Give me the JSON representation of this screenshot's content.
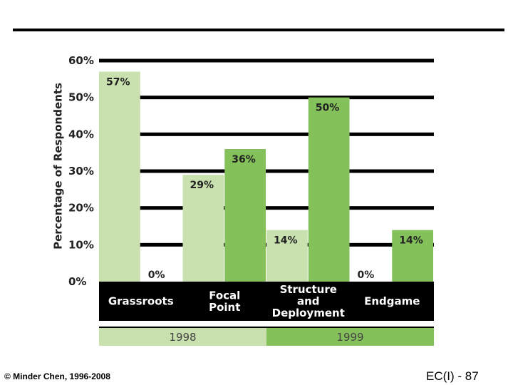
{
  "chart_data": {
    "type": "bar",
    "title": "",
    "xlabel": "",
    "ylabel": "Percentage of Respondents",
    "ylim": [
      0,
      60
    ],
    "y_ticks": [
      "0%",
      "10%",
      "20%",
      "30%",
      "40%",
      "50%",
      "60%"
    ],
    "categories": [
      "Grassroots",
      "Focal Point",
      "Structure and Deployment",
      "Endgame"
    ],
    "category_label_lines": [
      [
        "Grassroots"
      ],
      [
        "Focal",
        "Point"
      ],
      [
        "Structure",
        "and",
        "Deployment"
      ],
      [
        "Endgame"
      ]
    ],
    "series": [
      {
        "name": "1998",
        "values": [
          57,
          29,
          14,
          0
        ],
        "labels": [
          "57%",
          "29%",
          "14%",
          "0%"
        ],
        "color": "#c9e0af"
      },
      {
        "name": "1999",
        "values": [
          0,
          36,
          50,
          14
        ],
        "labels": [
          "0%",
          "36%",
          "50%",
          "14%"
        ],
        "color": "#84c15b"
      }
    ],
    "grid": true,
    "legend_position": "bottom"
  },
  "colors": {
    "gridline": "#000000",
    "category_band": "#000000",
    "category_text": "#ffffff"
  },
  "footer": {
    "copyright": "© Minder Chen, 1996-2008",
    "page_ref": "EC(I) - 87"
  }
}
